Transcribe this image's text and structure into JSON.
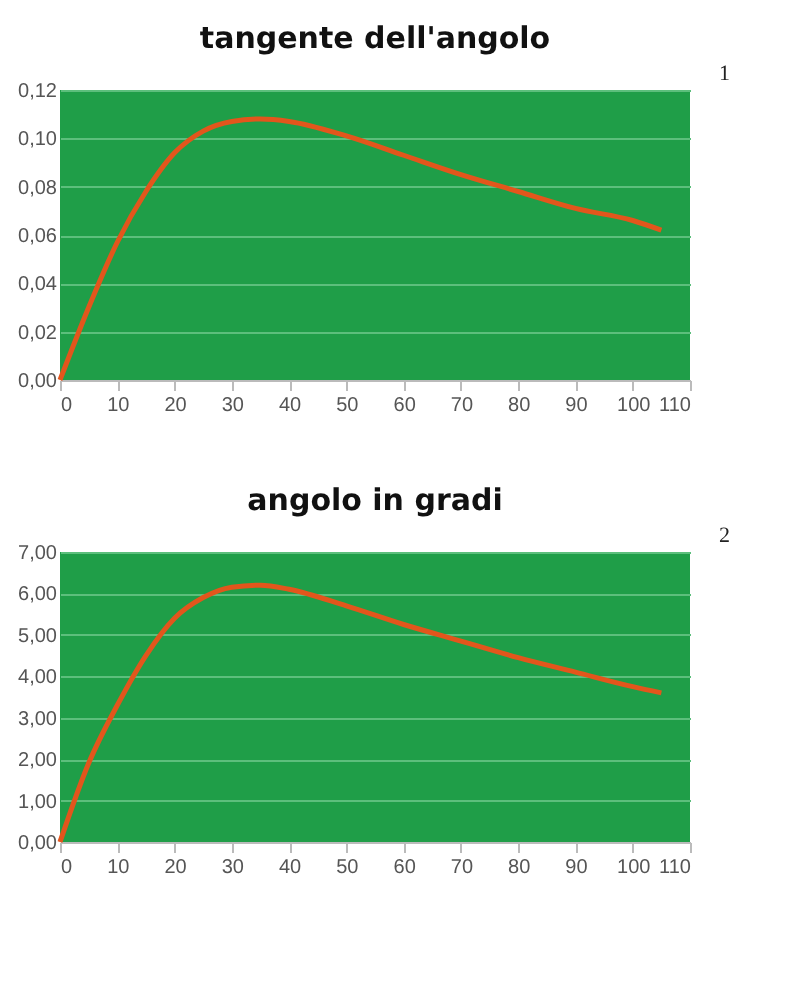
{
  "chart_data": [
    {
      "type": "line",
      "title": "tangente dell'angolo",
      "annotations": [
        "1"
      ],
      "x": [
        0,
        5,
        10,
        15,
        20,
        25,
        30,
        35,
        40,
        50,
        60,
        70,
        80,
        90,
        100,
        105
      ],
      "series": [
        {
          "color": "#e2561c",
          "values": [
            0,
            0.03,
            0.057,
            0.078,
            0.094,
            0.103,
            0.107,
            0.108,
            0.107,
            0.101,
            0.093,
            0.085,
            0.078,
            0.071,
            0.066,
            0.062
          ]
        }
      ],
      "xlim": [
        0,
        110
      ],
      "xticks": [
        0,
        10,
        20,
        30,
        40,
        50,
        60,
        70,
        80,
        90,
        100,
        110
      ],
      "ylim": [
        0,
        0.12
      ],
      "yticks": [
        {
          "value": 0,
          "label": "0,00"
        },
        {
          "value": 0.02,
          "label": "0,02"
        },
        {
          "value": 0.04,
          "label": "0,04"
        },
        {
          "value": 0.06,
          "label": "0,06"
        },
        {
          "value": 0.08,
          "label": "0,08"
        },
        {
          "value": 0.1,
          "label": "0,10"
        },
        {
          "value": 0.12,
          "label": "0,12"
        }
      ],
      "grid": "y",
      "marker": "none",
      "line_style": "solid"
    },
    {
      "type": "line",
      "title": "angolo in gradi",
      "annotations": [
        "2"
      ],
      "x": [
        0,
        5,
        10,
        15,
        20,
        25,
        30,
        35,
        40,
        50,
        60,
        70,
        80,
        90,
        100,
        105
      ],
      "series": [
        {
          "color": "#e2561c",
          "values": [
            0,
            1.9,
            3.3,
            4.5,
            5.4,
            5.9,
            6.15,
            6.2,
            6.1,
            5.7,
            5.25,
            4.85,
            4.45,
            4.1,
            3.75,
            3.6
          ]
        }
      ],
      "xlim": [
        0,
        110
      ],
      "xticks": [
        0,
        10,
        20,
        30,
        40,
        50,
        60,
        70,
        80,
        90,
        100,
        110
      ],
      "ylim": [
        0,
        7
      ],
      "yticks": [
        {
          "value": 0,
          "label": "0,00"
        },
        {
          "value": 1,
          "label": "1,00"
        },
        {
          "value": 2,
          "label": "2,00"
        },
        {
          "value": 3,
          "label": "3,00"
        },
        {
          "value": 4,
          "label": "4,00"
        },
        {
          "value": 5,
          "label": "5,00"
        },
        {
          "value": 6,
          "label": "6,00"
        },
        {
          "value": 7,
          "label": "7,00"
        }
      ],
      "grid": "y",
      "marker": "none",
      "line_style": "solid"
    }
  ]
}
